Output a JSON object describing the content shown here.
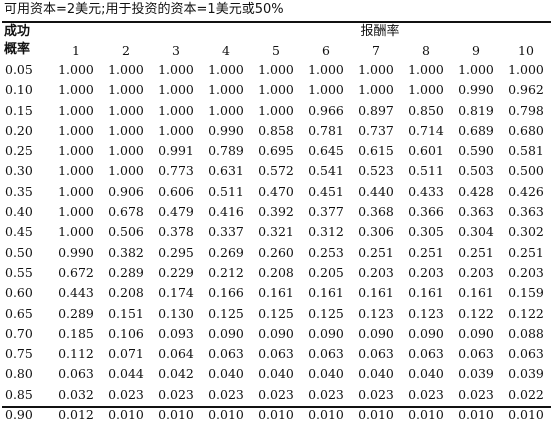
{
  "caption": "可用资本=2美元;用于投资的资本=1美元或50%",
  "row_header_line1": "成功",
  "row_header_line2": "概率",
  "column_group_label": "报酬率",
  "columns": [
    "1",
    "2",
    "3",
    "4",
    "5",
    "6",
    "7",
    "8",
    "9",
    "10"
  ],
  "rows": [
    {
      "p": "0.05",
      "v": [
        "1.000",
        "1.000",
        "1.000",
        "1.000",
        "1.000",
        "1.000",
        "1.000",
        "1.000",
        "1.000",
        "1.000"
      ]
    },
    {
      "p": "0.10",
      "v": [
        "1.000",
        "1.000",
        "1.000",
        "1.000",
        "1.000",
        "1.000",
        "1.000",
        "1.000",
        "0.990",
        "0.962"
      ]
    },
    {
      "p": "0.15",
      "v": [
        "1.000",
        "1.000",
        "1.000",
        "1.000",
        "1.000",
        "0.966",
        "0.897",
        "0.850",
        "0.819",
        "0.798"
      ]
    },
    {
      "p": "0.20",
      "v": [
        "1.000",
        "1.000",
        "1.000",
        "0.990",
        "0.858",
        "0.781",
        "0.737",
        "0.714",
        "0.689",
        "0.680"
      ]
    },
    {
      "p": "0.25",
      "v": [
        "1.000",
        "1.000",
        "0.991",
        "0.789",
        "0.695",
        "0.645",
        "0.615",
        "0.601",
        "0.590",
        "0.581"
      ]
    },
    {
      "p": "0.30",
      "v": [
        "1.000",
        "1.000",
        "0.773",
        "0.631",
        "0.572",
        "0.541",
        "0.523",
        "0.511",
        "0.503",
        "0.500"
      ]
    },
    {
      "p": "0.35",
      "v": [
        "1.000",
        "0.906",
        "0.606",
        "0.511",
        "0.470",
        "0.451",
        "0.440",
        "0.433",
        "0.428",
        "0.426"
      ]
    },
    {
      "p": "0.40",
      "v": [
        "1.000",
        "0.678",
        "0.479",
        "0.416",
        "0.392",
        "0.377",
        "0.368",
        "0.366",
        "0.363",
        "0.363"
      ]
    },
    {
      "p": "0.45",
      "v": [
        "1.000",
        "0.506",
        "0.378",
        "0.337",
        "0.321",
        "0.312",
        "0.306",
        "0.305",
        "0.304",
        "0.302"
      ]
    },
    {
      "p": "0.50",
      "v": [
        "0.990",
        "0.382",
        "0.295",
        "0.269",
        "0.260",
        "0.253",
        "0.251",
        "0.251",
        "0.251",
        "0.251"
      ]
    },
    {
      "p": "0.55",
      "v": [
        "0.672",
        "0.289",
        "0.229",
        "0.212",
        "0.208",
        "0.205",
        "0.203",
        "0.203",
        "0.203",
        "0.203"
      ]
    },
    {
      "p": "0.60",
      "v": [
        "0.443",
        "0.208",
        "0.174",
        "0.166",
        "0.161",
        "0.161",
        "0.161",
        "0.161",
        "0.161",
        "0.159"
      ]
    },
    {
      "p": "0.65",
      "v": [
        "0.289",
        "0.151",
        "0.130",
        "0.125",
        "0.125",
        "0.125",
        "0.123",
        "0.123",
        "0.122",
        "0.122"
      ]
    },
    {
      "p": "0.70",
      "v": [
        "0.185",
        "0.106",
        "0.093",
        "0.090",
        "0.090",
        "0.090",
        "0.090",
        "0.090",
        "0.090",
        "0.088"
      ]
    },
    {
      "p": "0.75",
      "v": [
        "0.112",
        "0.071",
        "0.064",
        "0.063",
        "0.063",
        "0.063",
        "0.063",
        "0.063",
        "0.063",
        "0.063"
      ]
    },
    {
      "p": "0.80",
      "v": [
        "0.063",
        "0.044",
        "0.042",
        "0.040",
        "0.040",
        "0.040",
        "0.040",
        "0.040",
        "0.039",
        "0.039"
      ]
    },
    {
      "p": "0.85",
      "v": [
        "0.032",
        "0.023",
        "0.023",
        "0.023",
        "0.023",
        "0.023",
        "0.023",
        "0.023",
        "0.023",
        "0.022"
      ]
    },
    {
      "p": "0.90",
      "v": [
        "0.012",
        "0.010",
        "0.010",
        "0.010",
        "0.010",
        "0.010",
        "0.010",
        "0.010",
        "0.010",
        "0.010"
      ]
    }
  ]
}
